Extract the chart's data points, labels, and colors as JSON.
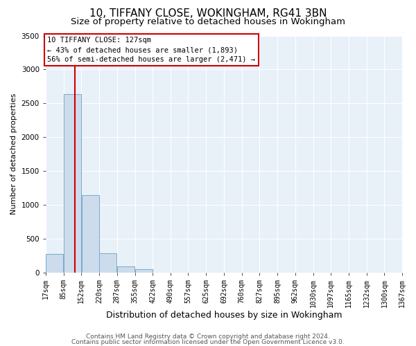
{
  "title": "10, TIFFANY CLOSE, WOKINGHAM, RG41 3BN",
  "subtitle": "Size of property relative to detached houses in Wokingham",
  "xlabel": "Distribution of detached houses by size in Wokingham",
  "ylabel": "Number of detached properties",
  "bin_edges": [
    17,
    85,
    152,
    220,
    287,
    355,
    422,
    490,
    557,
    625,
    692,
    760,
    827,
    895,
    962,
    1030,
    1097,
    1165,
    1232,
    1300,
    1367
  ],
  "bin_counts": [
    270,
    2640,
    1140,
    280,
    85,
    45,
    0,
    0,
    0,
    0,
    0,
    0,
    0,
    0,
    0,
    0,
    0,
    0,
    0,
    0
  ],
  "bar_color": "#ccdcec",
  "bar_edge_color": "#7aaac8",
  "property_size": 127,
  "vline_color": "#cc0000",
  "ylim": [
    0,
    3500
  ],
  "annotation_title": "10 TIFFANY CLOSE: 127sqm",
  "annotation_line1": "← 43% of detached houses are smaller (1,893)",
  "annotation_line2": "56% of semi-detached houses are larger (2,471) →",
  "annotation_box_color": "#cc0000",
  "tick_labels": [
    "17sqm",
    "85sqm",
    "152sqm",
    "220sqm",
    "287sqm",
    "355sqm",
    "422sqm",
    "490sqm",
    "557sqm",
    "625sqm",
    "692sqm",
    "760sqm",
    "827sqm",
    "895sqm",
    "962sqm",
    "1030sqm",
    "1097sqm",
    "1165sqm",
    "1232sqm",
    "1300sqm",
    "1367sqm"
  ],
  "footer1": "Contains HM Land Registry data © Crown copyright and database right 2024.",
  "footer2": "Contains public sector information licensed under the Open Government Licence v3.0.",
  "fig_bg_color": "#ffffff",
  "plot_bg_color": "#e8f0f8",
  "grid_color": "#ffffff",
  "title_fontsize": 11,
  "subtitle_fontsize": 9.5,
  "ylabel_fontsize": 8,
  "xlabel_fontsize": 9,
  "tick_fontsize": 7,
  "footer_fontsize": 6.5,
  "ytick_values": [
    0,
    500,
    1000,
    1500,
    2000,
    2500,
    3000,
    3500
  ]
}
